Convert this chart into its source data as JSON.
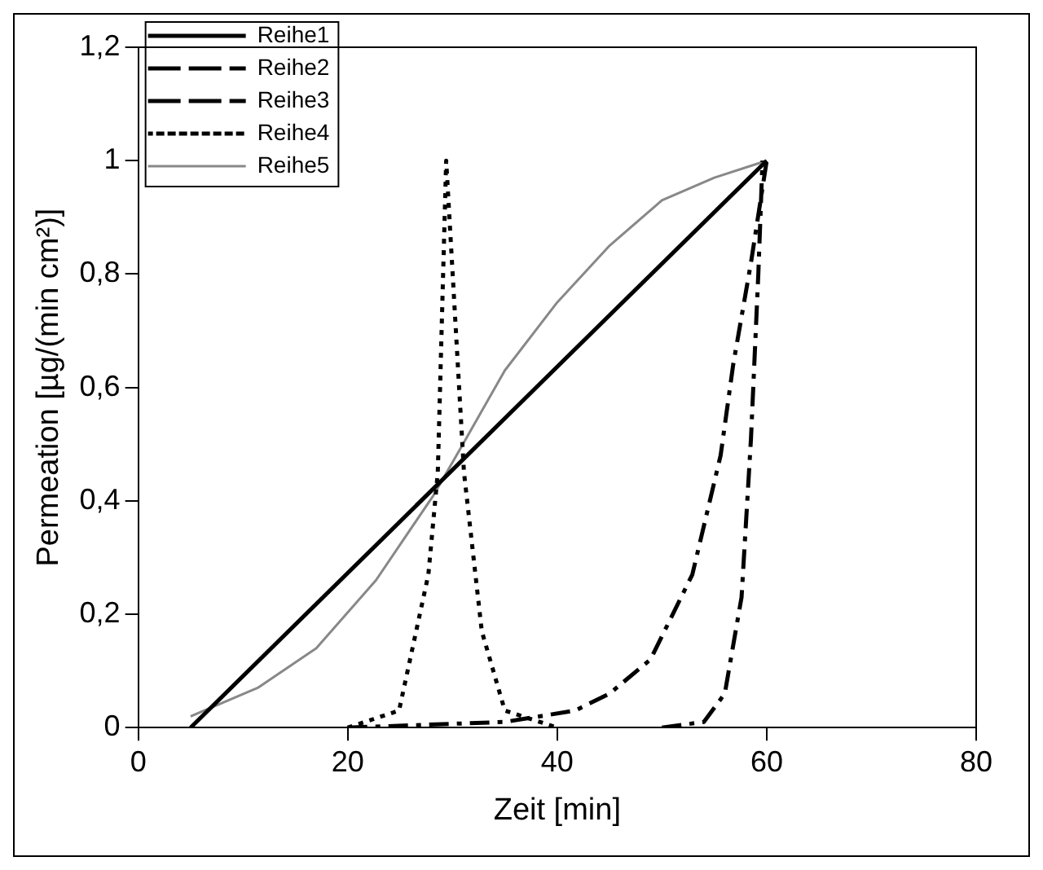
{
  "chart_data": {
    "type": "line",
    "xlabel": "Zeit [min]",
    "ylabel": "Permeation [µg/(min cm²)]",
    "xlim": [
      0,
      80
    ],
    "xticks": [
      0,
      20,
      40,
      60,
      80
    ],
    "ylim": [
      0,
      1.2
    ],
    "yticks": [
      0,
      {
        "value": 0.2,
        "label": "0,2"
      },
      {
        "value": 0.4,
        "label": "0,4"
      },
      {
        "value": 0.6,
        "label": "0,6"
      },
      {
        "value": 0.8,
        "label": "0,8"
      },
      1,
      {
        "value": 1.2,
        "label": "1,2"
      }
    ],
    "grid": false,
    "legend": "top left",
    "marker": "none",
    "series": [
      {
        "name": "Reihe1",
        "color": "#000000",
        "line_style": "solid",
        "x": [
          5,
          60
        ],
        "values": [
          0,
          1
        ]
      },
      {
        "name": "Reihe2",
        "color": "#000000",
        "line_style": "dashed",
        "x": [
          20,
          35,
          41.7,
          45,
          48.9,
          52.9,
          55.6,
          56.8,
          58.5,
          60
        ],
        "values": [
          0,
          0.01,
          0.03,
          0.06,
          0.12,
          0.27,
          0.48,
          0.64,
          0.82,
          1
        ]
      },
      {
        "name": "Reihe3",
        "color": "#000000",
        "line_style": "dashed",
        "x": [
          50,
          54,
          56,
          57.6,
          58.5,
          59.2,
          59.6
        ],
        "values": [
          0,
          0.01,
          0.06,
          0.23,
          0.51,
          0.8,
          1
        ]
      },
      {
        "name": "Reihe4",
        "color": "#000000",
        "line_style": "dotted",
        "x": [
          20,
          24.9,
          27.7,
          28.6,
          29.4,
          31.1,
          32.8,
          35,
          40
        ],
        "values": [
          0,
          0.03,
          0.27,
          0.45,
          1,
          0.45,
          0.17,
          0.03,
          0
        ]
      },
      {
        "name": "Reihe5",
        "color": "#888888",
        "line_style": "solid",
        "x": [
          5,
          11.4,
          17,
          22.7,
          28.2,
          31,
          35,
          40,
          45,
          50,
          55,
          60
        ],
        "values": [
          0.02,
          0.07,
          0.14,
          0.26,
          0.41,
          0.5,
          0.63,
          0.75,
          0.85,
          0.93,
          0.97,
          1
        ]
      }
    ]
  }
}
